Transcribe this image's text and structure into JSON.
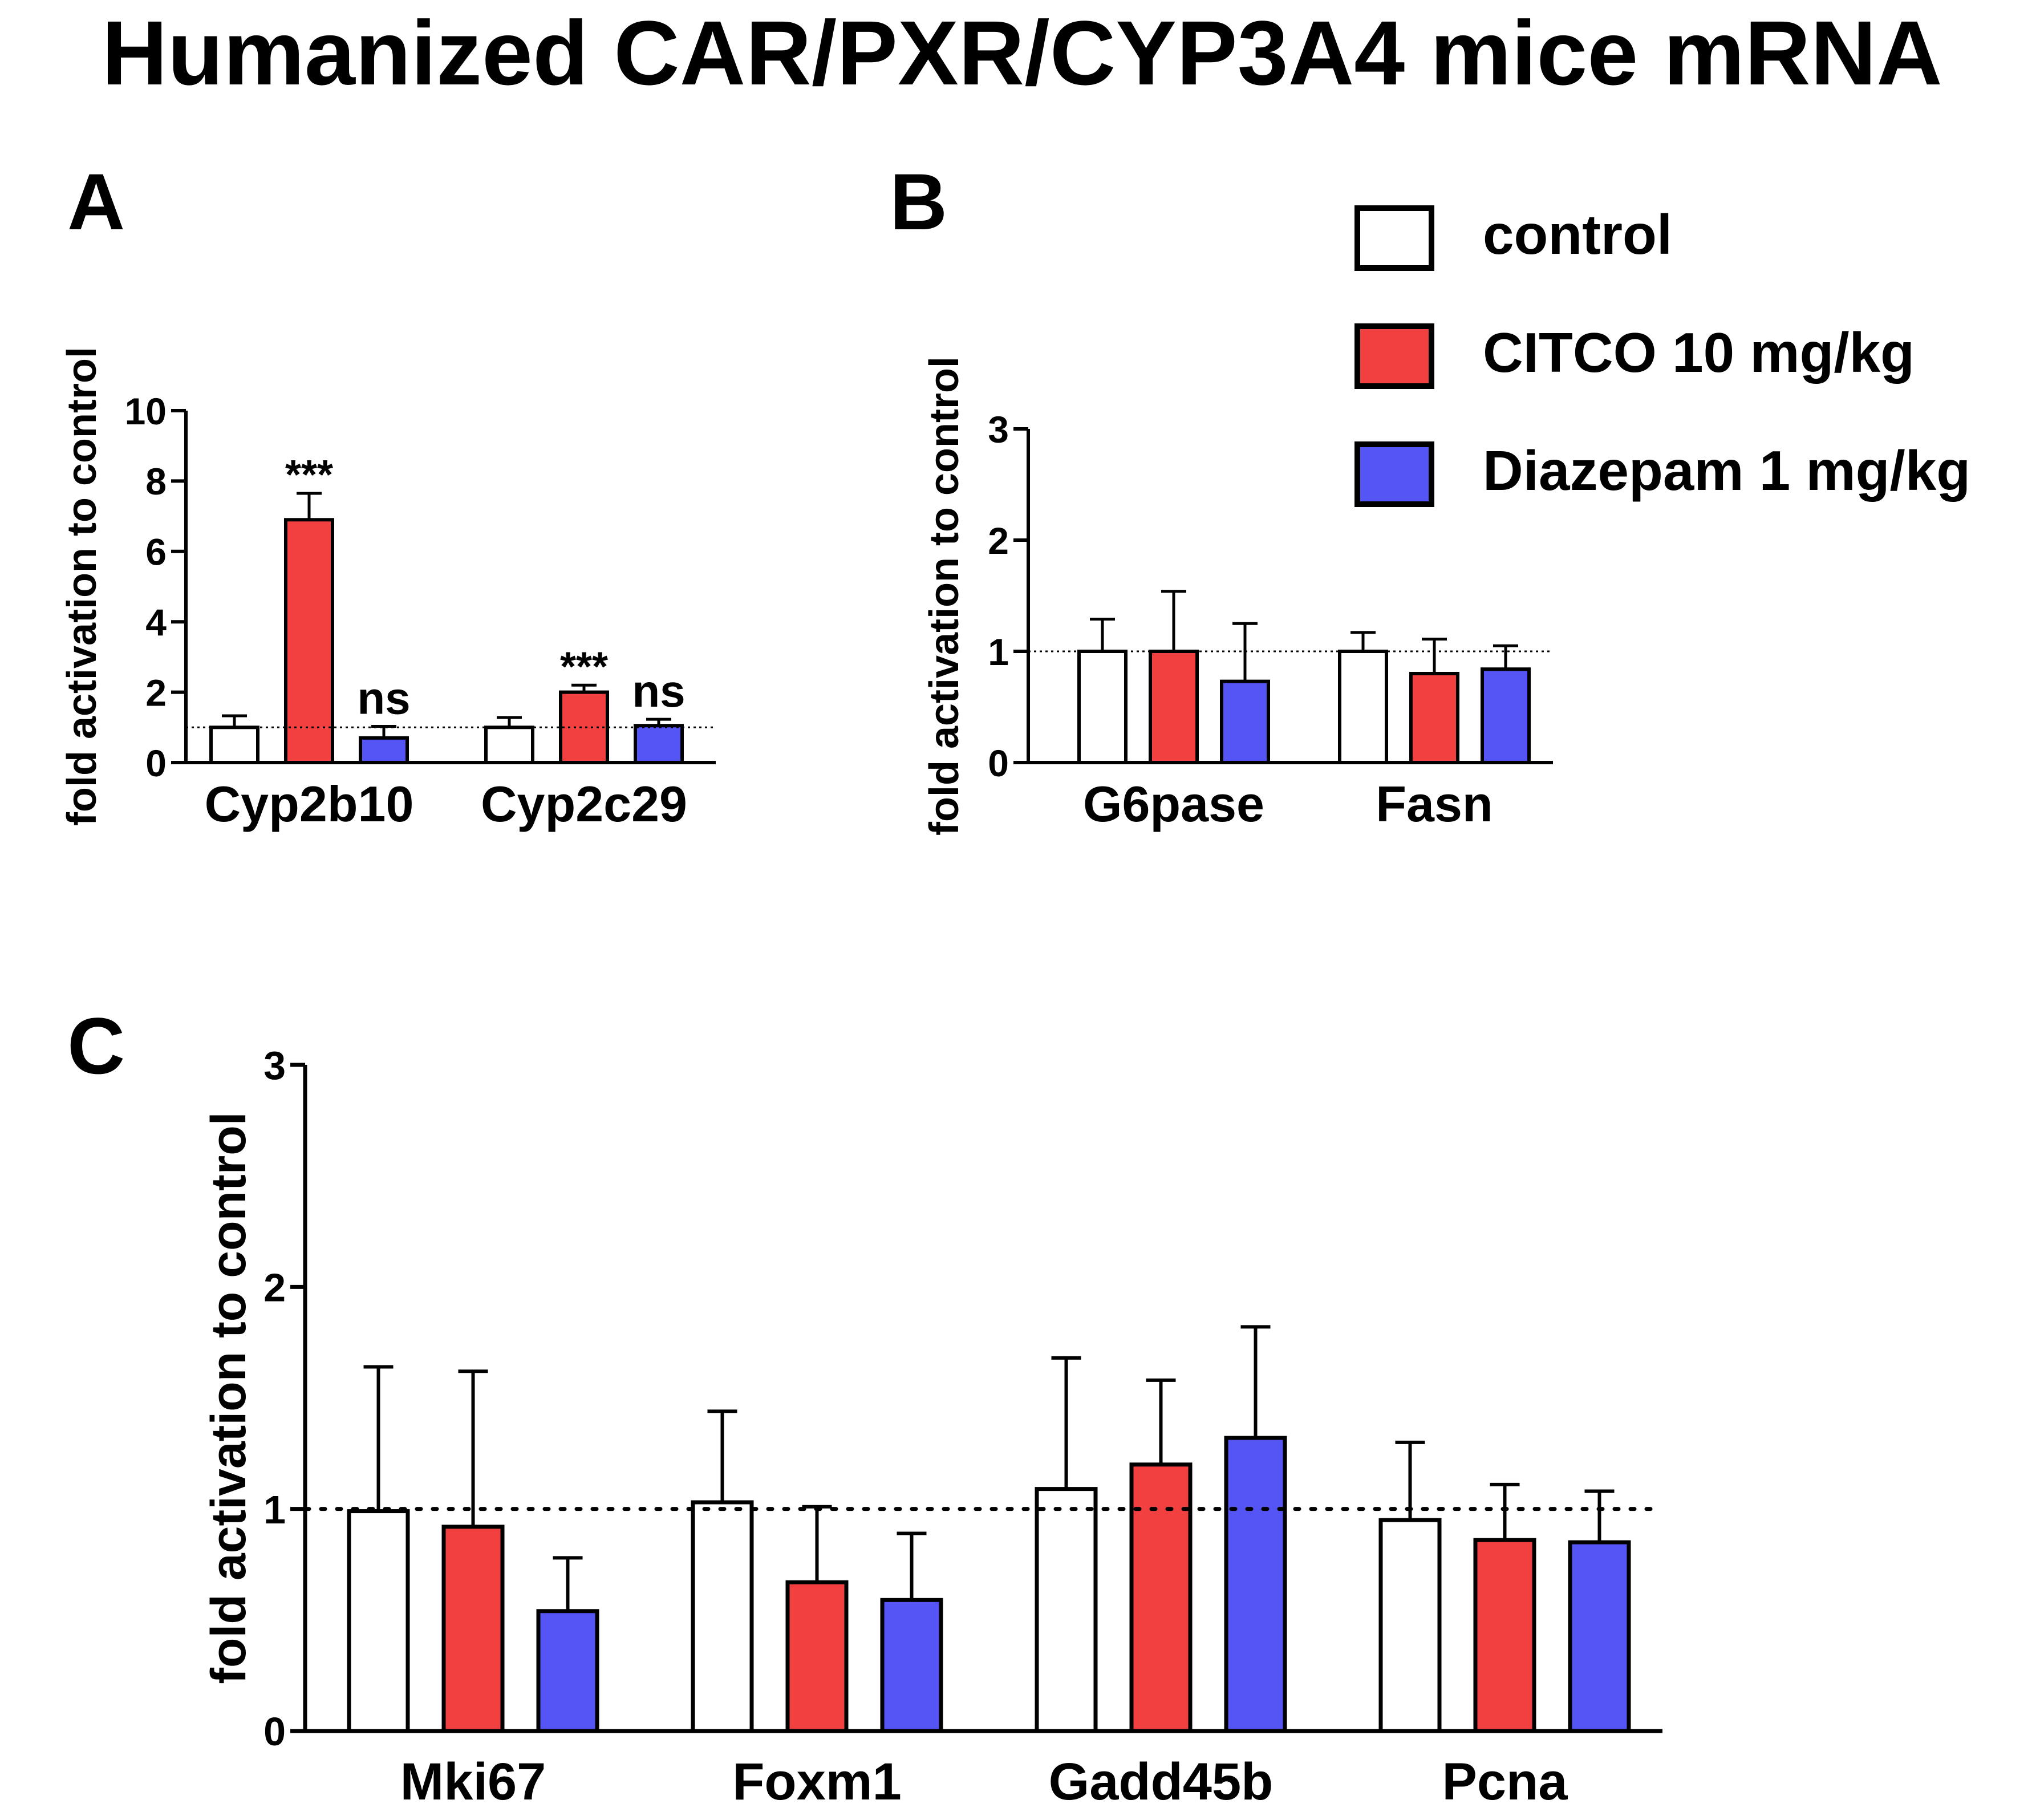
{
  "title": "Humanized CAR/PXR/CYP3A4 mice mRNA",
  "legend": {
    "placement": "top-right",
    "entries": [
      {
        "label": "control",
        "color": "#ffffff"
      },
      {
        "label": "CITCO 10 mg/kg",
        "color": "#f23f3f"
      },
      {
        "label": "Diazepam 1 mg/kg",
        "color": "#5555f5"
      }
    ]
  },
  "colors": {
    "control": "#ffffff",
    "citco": "#f23f3f",
    "diazepam": "#5555f5"
  },
  "chart_data": [
    {
      "panel": "A",
      "type": "bar",
      "ylabel": "fold activation to control",
      "ylim": [
        0,
        10
      ],
      "yticks": [
        0,
        2,
        4,
        6,
        8,
        10
      ],
      "reference_line": 1,
      "categories": [
        "Cyp2b10",
        "Cyp2c29"
      ],
      "series": [
        {
          "name": "control",
          "values": [
            1.0,
            1.0
          ],
          "errors": [
            0.33,
            0.28
          ]
        },
        {
          "name": "CITCO 10 mg/kg",
          "values": [
            6.9,
            2.0
          ],
          "errors": [
            0.75,
            0.2
          ]
        },
        {
          "name": "Diazepam 1 mg/kg",
          "values": [
            0.7,
            1.05
          ],
          "errors": [
            0.33,
            0.18
          ]
        }
      ],
      "annotations": [
        {
          "category": 0,
          "series": 1,
          "text": "***"
        },
        {
          "category": 0,
          "series": 2,
          "text": "ns"
        },
        {
          "category": 1,
          "series": 1,
          "text": "***"
        },
        {
          "category": 1,
          "series": 2,
          "text": "ns"
        }
      ]
    },
    {
      "panel": "B",
      "type": "bar",
      "ylabel": "fold activation to control",
      "ylim": [
        0,
        3
      ],
      "yticks": [
        0,
        1,
        2,
        3
      ],
      "reference_line": 1,
      "categories": [
        "G6pase",
        "Fasn"
      ],
      "series": [
        {
          "name": "control",
          "values": [
            1.0,
            1.0
          ],
          "errors": [
            0.29,
            0.17
          ]
        },
        {
          "name": "CITCO 10 mg/kg",
          "values": [
            1.0,
            0.8
          ],
          "errors": [
            0.54,
            0.31
          ]
        },
        {
          "name": "Diazepam 1 mg/kg",
          "values": [
            0.73,
            0.84
          ],
          "errors": [
            0.52,
            0.21
          ]
        }
      ],
      "annotations": []
    },
    {
      "panel": "C",
      "type": "bar",
      "ylabel": "fold activation to control",
      "ylim": [
        0,
        3
      ],
      "yticks": [
        0,
        1,
        2,
        3
      ],
      "reference_line": 1,
      "categories": [
        "Mki67",
        "Foxm1",
        "Gadd45b",
        "Pcna"
      ],
      "series": [
        {
          "name": "control",
          "values": [
            0.99,
            1.03,
            1.09,
            0.95
          ],
          "errors": [
            0.65,
            0.41,
            0.59,
            0.35
          ]
        },
        {
          "name": "CITCO 10 mg/kg",
          "values": [
            0.92,
            0.67,
            1.2,
            0.86
          ],
          "errors": [
            0.7,
            0.34,
            0.38,
            0.25
          ]
        },
        {
          "name": "Diazepam 1 mg/kg",
          "values": [
            0.54,
            0.59,
            1.32,
            0.85
          ],
          "errors": [
            0.24,
            0.3,
            0.5,
            0.23
          ]
        }
      ],
      "annotations": []
    }
  ]
}
